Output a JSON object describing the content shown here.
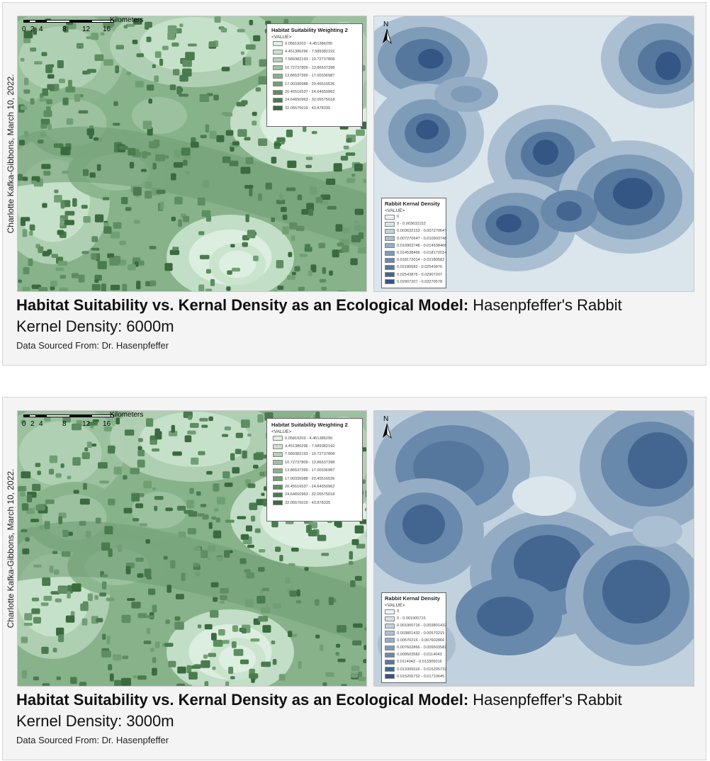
{
  "panels": [
    {
      "author": "Charlotte Kafka-Gibbons, March 10, 2022.",
      "scale_unit": "Kilometers",
      "scale_ticks": [
        "0",
        "2",
        "4",
        "8",
        "12",
        "16"
      ],
      "habitat_legend": {
        "title": "Habitat Suitability Weighting 2",
        "subtitle": "<VALUE>",
        "items": [
          {
            "label": "0.05819203 - 4.451386295",
            "color": "#dff0e2"
          },
          {
            "label": "4.451386296 - 7.589382192",
            "color": "#c9e2cc"
          },
          {
            "label": "7.589382193 - 10.72737808",
            "color": "#b3d2b6"
          },
          {
            "label": "10.72737809 - 13.86537398",
            "color": "#9dc2a0"
          },
          {
            "label": "13.86537399 - 17.00336987",
            "color": "#87b28a"
          },
          {
            "label": "17.00336988 - 20.45516536",
            "color": "#719f74"
          },
          {
            "label": "20.45516537 - 24.64650962",
            "color": "#5d8d61"
          },
          {
            "label": "24.64650963 - 32.05575018",
            "color": "#4a7b4e"
          },
          {
            "label": "32.05575019 - 43.878335",
            "color": "#3a6a3e"
          }
        ]
      },
      "north_label": "N",
      "density_legend": {
        "title": "Rabbit Kernal Density",
        "subtitle": "<VALUE>",
        "items": [
          {
            "label": "0",
            "color": "#edf2f6"
          },
          {
            "label": "0 - 0.003632153",
            "color": "#d8e2ea"
          },
          {
            "label": "0.003632153 - 0.00727064?",
            "color": "#c2d1de"
          },
          {
            "label": "0.00727064? - 0.010903748",
            "color": "#abbfd2"
          },
          {
            "label": "0.010903748 - 0.014538466",
            "color": "#94adc5"
          },
          {
            "label": "0.014538466 - 0.018172014",
            "color": "#7e9bb8"
          },
          {
            "label": "0.018172014 - 0.02180582",
            "color": "#6889ab"
          },
          {
            "label": "0.02180582 - 0.02543876",
            "color": "#55779e"
          },
          {
            "label": "0.02543876 - 0.02907207",
            "color": "#436691"
          },
          {
            "label": "0.02907207 - 0.03270578",
            "color": "#335684"
          }
        ]
      },
      "caption": {
        "title_bold": "Habitat Suitability vs. Kernal Density as an Ecological Model:",
        "title_rest": " Hasenpfeffer's Rabbit",
        "subtitle": "Kernel Density: 6000m",
        "source": "Data Sourced From: Dr. Hasenpfeffer"
      }
    },
    {
      "author": "Charlotte Kafka-Gibbons, March 10, 2022.",
      "scale_unit": "Kilometers",
      "scale_ticks": [
        "0",
        "2",
        "4",
        "8",
        "12",
        "16"
      ],
      "habitat_legend": {
        "title": "Habitat Suitability Weighting 2",
        "subtitle": "<VALUE>",
        "items": [
          {
            "label": "0.05819203 - 4.451386295",
            "color": "#dff0e2"
          },
          {
            "label": "4.451386296 - 7.589382192",
            "color": "#c9e2cc"
          },
          {
            "label": "7.589382193 - 10.72737808",
            "color": "#b3d2b6"
          },
          {
            "label": "10.72737809 - 13.86537398",
            "color": "#9dc2a0"
          },
          {
            "label": "13.86537399 - 17.00336987",
            "color": "#87b28a"
          },
          {
            "label": "17.00336988 - 20.45516536",
            "color": "#719f74"
          },
          {
            "label": "20.45516537 - 24.64650962",
            "color": "#5d8d61"
          },
          {
            "label": "24.64650963 - 32.05575018",
            "color": "#4a7b4e"
          },
          {
            "label": "32.05575019 - 43.878335",
            "color": "#3a6a3e"
          }
        ]
      },
      "north_label": "N",
      "density_legend": {
        "title": "Rabbit Kernal Density",
        "subtitle": "<VALUE>",
        "items": [
          {
            "label": "0",
            "color": "#edf2f6"
          },
          {
            "label": "0 - 0.001900716",
            "color": "#d8e2ea"
          },
          {
            "label": "0.001900716 - 0.003801432",
            "color": "#c2d1de"
          },
          {
            "label": "0.003801432 - 0.00570215",
            "color": "#abbfd2"
          },
          {
            "label": "0.00570215 - 0.007602866",
            "color": "#94adc5"
          },
          {
            "label": "0.007602866 - 0.009503582",
            "color": "#7e9bb8"
          },
          {
            "label": "0.009503582 - 0.0114043",
            "color": "#6889ab"
          },
          {
            "label": "0.0114043 - 0.013305016",
            "color": "#55779e"
          },
          {
            "label": "0.013305016 - 0.015205732",
            "color": "#436691"
          },
          {
            "label": "0.015205732 - 0.01710645",
            "color": "#335684"
          }
        ]
      },
      "caption": {
        "title_bold": "Habitat Suitability vs. Kernal Density as an Ecological Model:",
        "title_rest": " Hasenpfeffer's Rabbit",
        "subtitle": "Kernel Density: 3000m",
        "source": "Data Sourced From: Dr. Hasenpfeffer"
      }
    }
  ]
}
